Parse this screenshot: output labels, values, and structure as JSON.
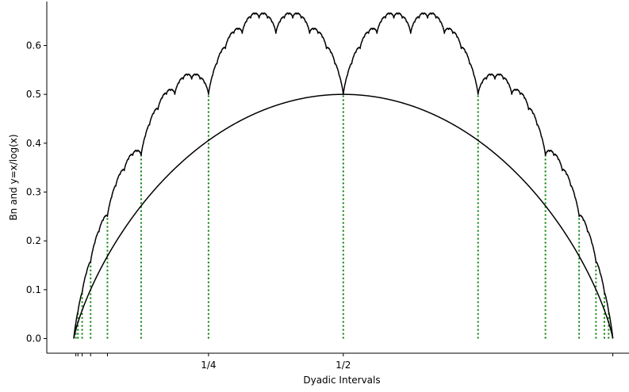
{
  "chart_data": {
    "type": "line",
    "title": "",
    "xlabel": "Dyadic Intervals",
    "ylabel": "Bn and y=x/log(x)",
    "xlim": [
      -0.05,
      1.03
    ],
    "ylim": [
      -0.03,
      0.69
    ],
    "x_ticks": [
      {
        "value": 0.00390625,
        "label": ""
      },
      {
        "value": 0.0078125,
        "label": ""
      },
      {
        "value": 0.015625,
        "label": ""
      },
      {
        "value": 0.03125,
        "label": ""
      },
      {
        "value": 0.0625,
        "label": ""
      },
      {
        "value": 0.25,
        "label": "1/4"
      },
      {
        "value": 0.5,
        "label": "1/2"
      },
      {
        "value": 1.0,
        "label": ""
      }
    ],
    "y_ticks": [
      {
        "value": 0.0,
        "label": "0.0"
      },
      {
        "value": 0.1,
        "label": "0.1"
      },
      {
        "value": 0.2,
        "label": "0.2"
      },
      {
        "value": 0.3,
        "label": "0.3"
      },
      {
        "value": 0.4,
        "label": "0.4"
      },
      {
        "value": 0.5,
        "label": "0.5"
      },
      {
        "value": 0.6,
        "label": "0.6"
      }
    ],
    "dyadic_points": [
      0.0,
      0.00390625,
      0.0078125,
      0.015625,
      0.03125,
      0.0625,
      0.125,
      0.25,
      0.5,
      0.75,
      0.875,
      0.9375,
      0.96875,
      0.984375,
      0.9921875,
      1.0
    ],
    "series": [
      {
        "color": "#000000",
        "style": "solid",
        "curve": "takagi-blancmange"
      },
      {
        "color": "#000000",
        "style": "solid",
        "curve": "entropy-envelope"
      },
      {
        "color": "#007f00",
        "style": "dotted",
        "curve": "dyadic-verticals"
      }
    ],
    "grid": false
  }
}
